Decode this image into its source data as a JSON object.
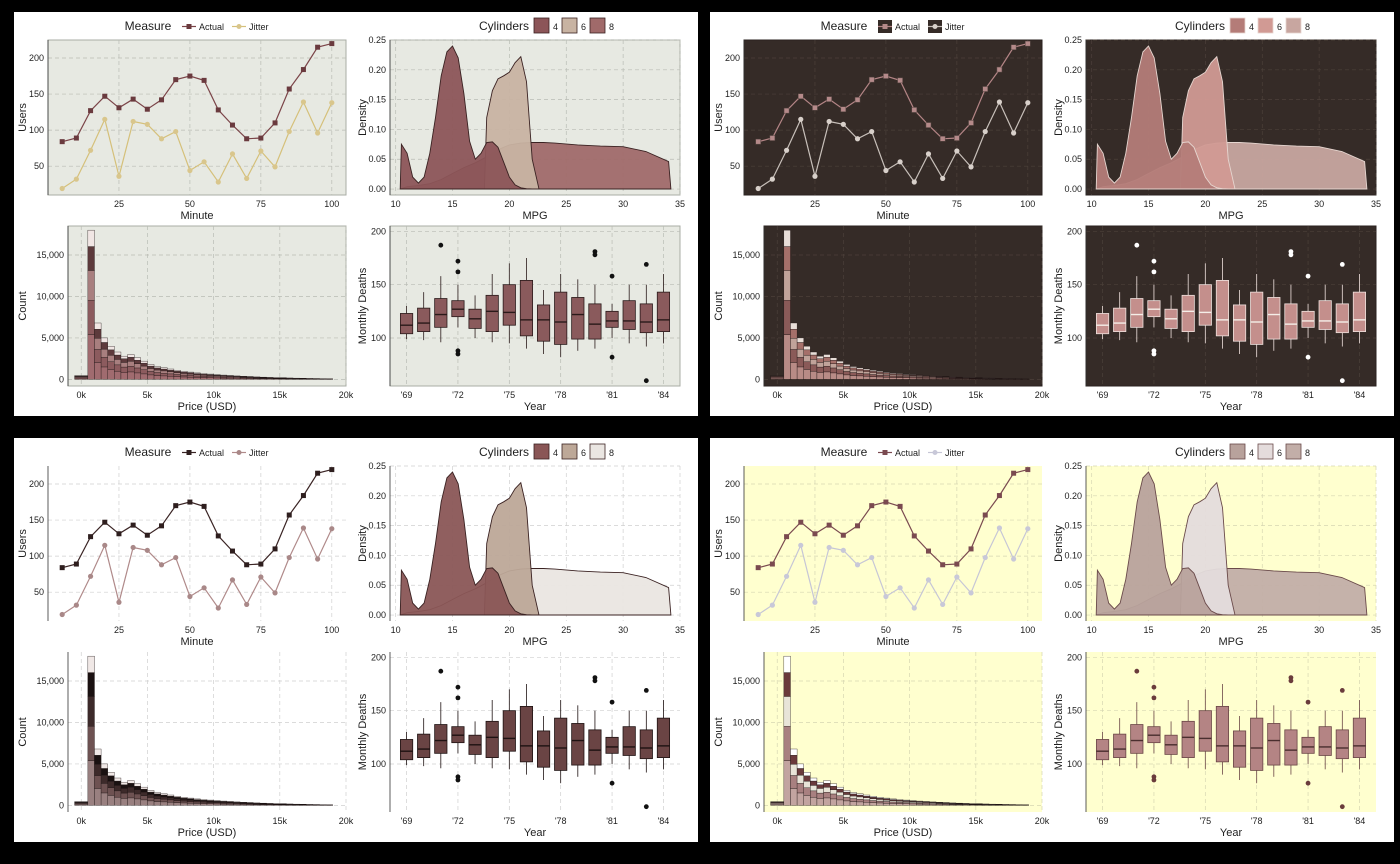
{
  "labels": {
    "measure_title": "Measure",
    "measure_entries": [
      "Actual",
      "Jitter"
    ],
    "cyl_title": "Cylinders",
    "cyl_entries": [
      "4",
      "6",
      "8"
    ]
  },
  "themes": [
    {
      "name": "light-grey",
      "bg": "#ffffff",
      "panel": "#e7e9e2",
      "grid": "#b9bcb4",
      "text": "#1e1e1e",
      "line1": "#7b4448",
      "line2": "#d5c07a",
      "pt1": "#6a3a3e",
      "pt2": "#d9c68c",
      "dens": [
        "#8c5558",
        "#c8b3a2",
        "#a06a6a"
      ],
      "dens_alpha": 1,
      "dens_line": "#3a2222",
      "hist": [
        "#f1e6e4",
        "#5d3a3c",
        "#a87f7f",
        "#8c5b5e",
        "#a06b6f"
      ],
      "box_fill": "#8a5a5c",
      "box_line": "#2a1a1a",
      "box_median": "#2a1a1a",
      "outlier": "#111111"
    },
    {
      "name": "dark",
      "bg": "#ffffff",
      "panel": "#352b27",
      "grid": "#4c403a",
      "text": "#1e1e1e",
      "line1": "#b48586",
      "line2": "#c8c0ba",
      "pt1": "#b58a8a",
      "pt2": "#d8d0ca",
      "dens": [
        "#b47c78",
        "#d19a94",
        "#c8a6a0"
      ],
      "dens_alpha": 1,
      "dens_line": "#e6d6d0",
      "hist": [
        "#e8ded8",
        "#a5706a",
        "#c0a39a",
        "#8a5a58",
        "#b88b86"
      ],
      "box_fill": "#c48f8c",
      "box_line": "#f0e2de",
      "box_median": "#f5eee8",
      "outlier": "#ffffff"
    },
    {
      "name": "white",
      "bg": "#ffffff",
      "panel": "#ffffff",
      "grid": "#cfcfcf",
      "text": "#1e1e1e",
      "line1": "#3a2424",
      "line2": "#b08a8a",
      "pt1": "#2e1e1e",
      "pt2": "#a98888",
      "dens": [
        "#8a5656",
        "#bda898",
        "#eae6e2"
      ],
      "dens_alpha": 1,
      "dens_line": "#3a2222",
      "hist": [
        "#f0e8e6",
        "#1a1111",
        "#3d2a2a",
        "#6e5252",
        "#998080"
      ],
      "box_fill": "#6a4444",
      "box_line": "#1e1212",
      "box_median": "#1e1212",
      "outlier": "#111111"
    },
    {
      "name": "yellow",
      "bg": "#ffffff",
      "panel": "#ffffcf",
      "grid": "#d6d6b2",
      "text": "#1e1e1e",
      "line1": "#7a4a50",
      "line2": "#c6c6d6",
      "pt1": "#7a4a50",
      "pt2": "#c8c8d8",
      "dens": [
        "#b8a29c",
        "#e4dcdc",
        "#c2aea8"
      ],
      "dens_alpha": 1,
      "dens_line": "#6a4a4a",
      "hist": [
        "#ffffff",
        "#6a3a3c",
        "#e8e4d8",
        "#a88080",
        "#c2a4a0"
      ],
      "box_fill": "#b48484",
      "box_line": "#6a4646",
      "box_median": "#4a2e2e",
      "outlier": "#6a3c3c"
    }
  ],
  "chart_data": [
    {
      "type": "line",
      "xlabel": "Minute",
      "ylabel": "Users",
      "xlim": [
        0,
        105
      ],
      "ylim": [
        10,
        225
      ],
      "xticks": [
        25,
        50,
        75,
        100
      ],
      "yticks": [
        50,
        100,
        150,
        200
      ],
      "legend": "top",
      "x": [
        5,
        10,
        15,
        20,
        25,
        30,
        35,
        40,
        45,
        50,
        55,
        60,
        65,
        70,
        75,
        80,
        85,
        90,
        95,
        100
      ],
      "series": [
        {
          "name": "Actual",
          "values": [
            84,
            89,
            127,
            147,
            131,
            143,
            129,
            142,
            170,
            175,
            169,
            128,
            107,
            88,
            89,
            110,
            157,
            184,
            215,
            220
          ]
        },
        {
          "name": "Jitter",
          "values": [
            19,
            32,
            72,
            115,
            36,
            112,
            108,
            88,
            98,
            44,
            56,
            28,
            67,
            33,
            71,
            49,
            98,
            139,
            96,
            138
          ]
        }
      ]
    },
    {
      "type": "area",
      "xlabel": "MPG",
      "ylabel": "Density",
      "xlim": [
        9.5,
        35
      ],
      "ylim": [
        -0.01,
        0.25
      ],
      "xticks": [
        10,
        15,
        20,
        25,
        30,
        35
      ],
      "yticks": [
        0.0,
        0.05,
        0.1,
        0.15,
        0.2,
        0.25
      ],
      "ytick_labels": [
        "0.00",
        "0.05",
        "0.10",
        "0.15",
        "0.20",
        "0.25"
      ],
      "legend": "top",
      "series": [
        {
          "name": "8",
          "x": [
            10.4,
            11,
            12,
            13,
            14,
            15,
            16,
            17,
            18,
            19,
            20,
            21,
            22,
            23,
            24,
            26,
            28,
            30,
            32,
            34,
            34.2
          ],
          "values": [
            0.0,
            0.004,
            0.006,
            0.009,
            0.016,
            0.026,
            0.036,
            0.044,
            0.054,
            0.066,
            0.074,
            0.077,
            0.078,
            0.078,
            0.077,
            0.074,
            0.072,
            0.071,
            0.063,
            0.046,
            0.0
          ]
        },
        {
          "name": "6",
          "x": [
            17.8,
            18,
            18.5,
            19,
            19.5,
            20,
            20.5,
            21,
            21.5,
            22,
            22.6
          ],
          "values": [
            0.0,
            0.12,
            0.165,
            0.185,
            0.19,
            0.196,
            0.212,
            0.222,
            0.18,
            0.05,
            0.0
          ]
        },
        {
          "name": "4",
          "x": [
            10.4,
            10.5,
            11,
            11.5,
            12,
            12.5,
            13,
            13.5,
            14,
            14.5,
            15,
            15.5,
            16,
            16.5,
            17,
            17.5,
            18,
            18.5,
            19,
            19.5,
            20,
            20.5,
            21,
            21.5,
            22
          ],
          "values": [
            0.0,
            0.075,
            0.06,
            0.02,
            0.01,
            0.02,
            0.06,
            0.12,
            0.19,
            0.23,
            0.24,
            0.22,
            0.16,
            0.08,
            0.05,
            0.06,
            0.078,
            0.079,
            0.07,
            0.045,
            0.02,
            0.007,
            0.002,
            0.0005,
            0.0
          ]
        }
      ]
    },
    {
      "type": "bar",
      "xlabel": "Price (USD)",
      "ylabel": "Count",
      "xlim": [
        -1000,
        20000
      ],
      "ylim": [
        -800,
        18500
      ],
      "xticks": [
        0,
        5000,
        10000,
        15000,
        20000
      ],
      "xtick_labels": [
        "0k",
        "5k",
        "10k",
        "15k",
        "20k"
      ],
      "yticks": [
        0,
        5000,
        10000,
        15000
      ],
      "ytick_labels": [
        "0",
        "5,000",
        "10,000",
        "15,000"
      ],
      "bins": [
        -500,
        500,
        1000,
        1500,
        2000,
        2500,
        3000,
        3500,
        4000,
        4500,
        5000,
        5500,
        6000,
        6500,
        7000,
        7500,
        8000,
        8500,
        9000,
        9500,
        10000,
        10500,
        11000,
        11500,
        12000,
        12500,
        13000,
        13500,
        14000,
        14500,
        15000,
        15500,
        16000,
        16500,
        17000,
        17500,
        18000,
        18500,
        19000
      ],
      "totals": [
        450,
        18000,
        6800,
        5000,
        4000,
        3300,
        2800,
        3000,
        2600,
        2200,
        1800,
        1550,
        1400,
        1250,
        1100,
        980,
        880,
        780,
        700,
        640,
        580,
        520,
        470,
        420,
        380,
        340,
        300,
        270,
        240,
        210,
        190,
        170,
        150,
        130,
        110,
        100,
        80,
        60
      ],
      "stack_fractions": [
        0.11,
        0.16,
        0.2,
        0.23,
        0.3
      ]
    },
    {
      "type": "box",
      "xlabel": "Year",
      "ylabel": "Monthly Deaths",
      "ylim": [
        55,
        205
      ],
      "yticks": [
        100,
        150,
        200
      ],
      "xtick_labels": [
        "'69",
        "'72",
        "'75",
        "'78",
        "'81",
        "'84"
      ],
      "boxes": [
        {
          "q1": 104,
          "med": 112,
          "q3": 123,
          "lo": 99,
          "hi": 130,
          "out": []
        },
        {
          "q1": 106,
          "med": 114,
          "q3": 128,
          "lo": 98,
          "hi": 143,
          "out": []
        },
        {
          "q1": 110,
          "med": 122,
          "q3": 137,
          "lo": 96,
          "hi": 158,
          "out": [
            187
          ]
        },
        {
          "q1": 120,
          "med": 127,
          "q3": 135,
          "lo": 110,
          "hi": 150,
          "out": [
            88,
            85,
            162,
            172
          ]
        },
        {
          "q1": 109,
          "med": 118,
          "q3": 127,
          "lo": 100,
          "hi": 140,
          "out": []
        },
        {
          "q1": 106,
          "med": 125,
          "q3": 140,
          "lo": 96,
          "hi": 160,
          "out": []
        },
        {
          "q1": 112,
          "med": 124,
          "q3": 150,
          "lo": 95,
          "hi": 170,
          "out": []
        },
        {
          "q1": 102,
          "med": 117,
          "q3": 154,
          "lo": 90,
          "hi": 175,
          "out": []
        },
        {
          "q1": 97,
          "med": 117,
          "q3": 131,
          "lo": 85,
          "hi": 145,
          "out": []
        },
        {
          "q1": 94,
          "med": 115,
          "q3": 143,
          "lo": 82,
          "hi": 160,
          "out": []
        },
        {
          "q1": 99,
          "med": 122,
          "q3": 138,
          "lo": 88,
          "hi": 155,
          "out": []
        },
        {
          "q1": 99,
          "med": 113,
          "q3": 132,
          "lo": 90,
          "hi": 150,
          "out": [
            181,
            178
          ]
        },
        {
          "q1": 110,
          "med": 116,
          "q3": 125,
          "lo": 100,
          "hi": 132,
          "out": [
            82,
            158
          ]
        },
        {
          "q1": 108,
          "med": 116,
          "q3": 135,
          "lo": 95,
          "hi": 150,
          "out": []
        },
        {
          "q1": 105,
          "med": 115,
          "q3": 132,
          "lo": 92,
          "hi": 150,
          "out": [
            60,
            169
          ]
        },
        {
          "q1": 106,
          "med": 117,
          "q3": 143,
          "lo": 95,
          "hi": 160,
          "out": []
        }
      ]
    }
  ]
}
